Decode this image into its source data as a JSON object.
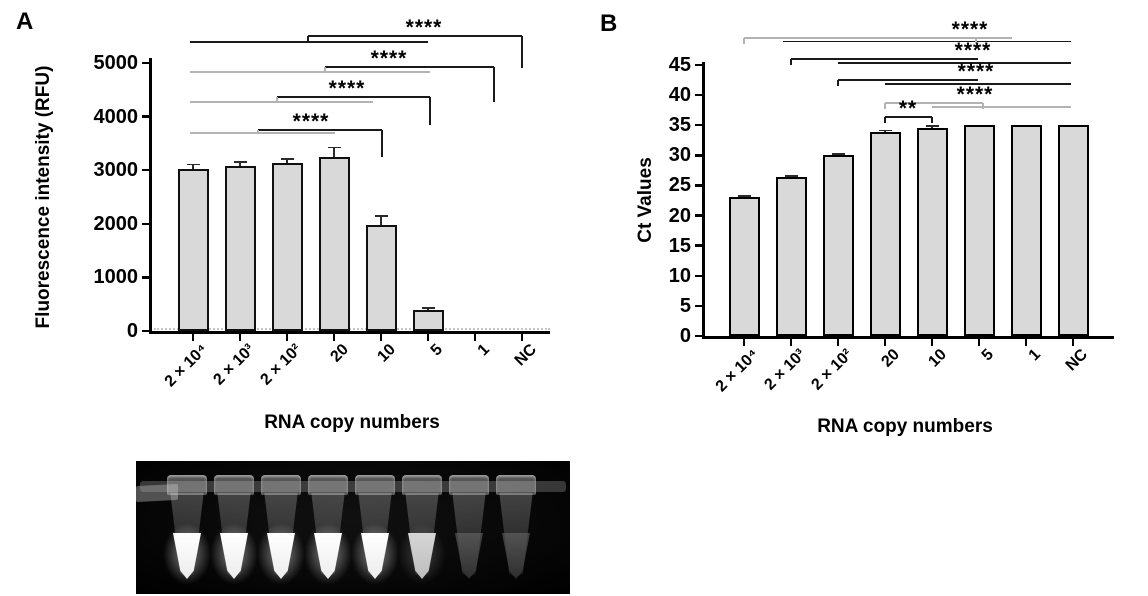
{
  "figure": {
    "panel_count": 2,
    "bar_fill_color": "#d9d9d9",
    "axis_color": "#000000"
  },
  "chart_data": [
    {
      "type": "bar",
      "panel_label": "A",
      "title": "",
      "xlabel": "RNA copy numbers",
      "ylabel": "Fluorescence intensity (RFU)",
      "categories": [
        "2 × 10⁴",
        "2 × 10³",
        "2 × 10²",
        "20",
        "10",
        "5",
        "1",
        "NC"
      ],
      "values": [
        3020,
        3075,
        3130,
        3240,
        1970,
        390,
        0,
        0
      ],
      "errors": [
        85,
        80,
        75,
        185,
        180,
        35,
        0,
        0
      ],
      "ylim": [
        0,
        5000
      ],
      "yticks": [
        0,
        1000,
        2000,
        3000,
        4000,
        5000
      ],
      "grid": false,
      "legend": "none",
      "baseline_dotted_value": 60,
      "significance": [
        {
          "label": "****"
        },
        {
          "label": "****"
        },
        {
          "label": "****"
        },
        {
          "label": "****"
        }
      ]
    },
    {
      "type": "bar",
      "panel_label": "B",
      "title": "",
      "xlabel": "RNA copy numbers",
      "ylabel": "Ct Values",
      "categories": [
        "2 × 10⁴",
        "2 × 10³",
        "2 × 10²",
        "20",
        "10",
        "5",
        "1",
        "NC"
      ],
      "values": [
        23,
        26.4,
        30,
        33.8,
        34.6,
        35,
        35,
        35
      ],
      "errors": [
        0.25,
        0.2,
        0.2,
        0.3,
        0.25,
        0,
        0,
        0
      ],
      "ylim": [
        0,
        45
      ],
      "yticks": [
        0,
        5,
        10,
        15,
        20,
        25,
        30,
        35,
        40,
        45
      ],
      "grid": false,
      "legend": "none",
      "significance": [
        {
          "label": "****"
        },
        {
          "label": "****"
        },
        {
          "label": "****"
        },
        {
          "label": "****"
        },
        {
          "label": "**"
        }
      ]
    }
  ],
  "gel_photo": {
    "tube_count": 8,
    "tube_glow": [
      "bright",
      "bright",
      "bright",
      "bright",
      "bright",
      "dim",
      "dark",
      "dark"
    ]
  }
}
